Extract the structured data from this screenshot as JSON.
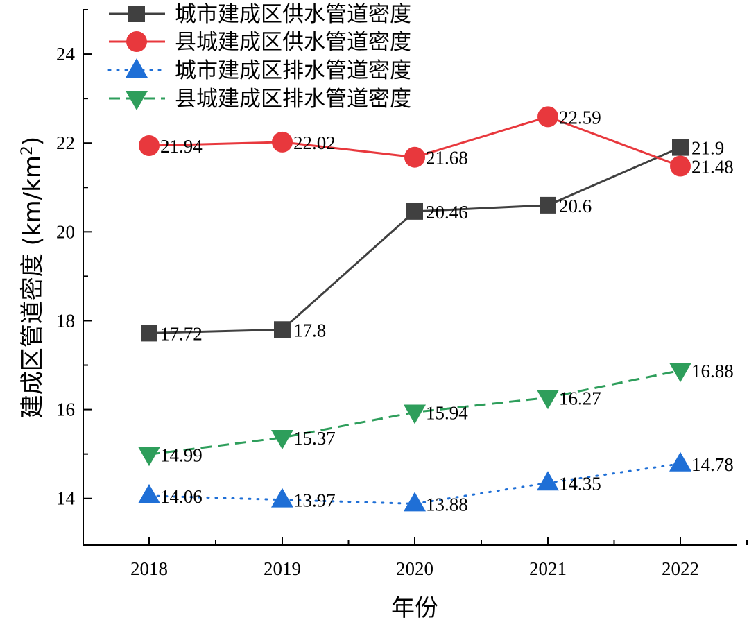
{
  "chart_data": {
    "type": "line",
    "xlabel": "年份",
    "ylabel": "建成区管道密度 (km/km",
    "ylabel_sup": "2",
    "ylabel_close": ")",
    "categories": [
      "2018",
      "2019",
      "2020",
      "2021",
      "2022"
    ],
    "ylim": [
      12.95,
      25
    ],
    "yticks": [
      14,
      16,
      18,
      20,
      22,
      24
    ],
    "legend_position": "top-left",
    "series": [
      {
        "name": "城市建成区供水管道密度",
        "values": [
          17.72,
          17.8,
          20.46,
          20.6,
          21.9
        ],
        "labels": [
          "17.72",
          "17.8",
          "20.46",
          "20.6",
          "21.9"
        ],
        "color": "#404040",
        "marker": "square",
        "line": "solid"
      },
      {
        "name": "县城建成区供水管道密度",
        "values": [
          21.94,
          22.02,
          21.68,
          22.59,
          21.48
        ],
        "labels": [
          "21.94",
          "22.02",
          "21.68",
          "22.59",
          "21.48"
        ],
        "color": "#e8383d",
        "marker": "circle",
        "line": "solid"
      },
      {
        "name": "城市建成区排水管道密度",
        "values": [
          14.06,
          13.97,
          13.88,
          14.35,
          14.78
        ],
        "labels": [
          "14.06",
          "13.97",
          "13.88",
          "14.35",
          "14.78"
        ],
        "color": "#1f6fd6",
        "marker": "triangle-up",
        "line": "dotted"
      },
      {
        "name": "县城建成区排水管道密度",
        "values": [
          14.99,
          15.37,
          15.94,
          16.27,
          16.88
        ],
        "labels": [
          "14.99",
          "15.37",
          "15.94",
          "16.27",
          "16.88"
        ],
        "color": "#2e9e5b",
        "marker": "triangle-down",
        "line": "dashed"
      }
    ]
  }
}
